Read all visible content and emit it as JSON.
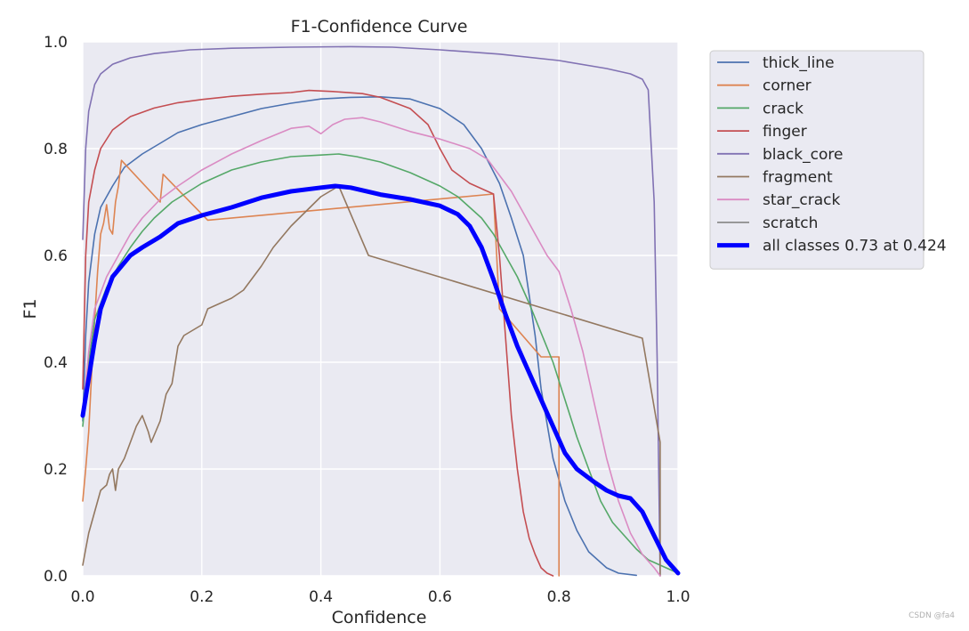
{
  "watermark": "CSDN @fa4",
  "chart_data": {
    "type": "line",
    "title": "F1-Confidence Curve",
    "xlabel": "Confidence",
    "ylabel": "F1",
    "xlim": [
      0,
      1
    ],
    "ylim": [
      0,
      1
    ],
    "xticks": [
      "0.0",
      "0.2",
      "0.4",
      "0.6",
      "0.8",
      "1.0"
    ],
    "yticks": [
      "0.0",
      "0.2",
      "0.4",
      "0.6",
      "0.8",
      "1.0"
    ],
    "grid": true,
    "legend_position": "outside-right",
    "colors": {
      "plot_background": "#eaeaf2",
      "grid": "#ffffff"
    },
    "series": [
      {
        "name": "thick_line",
        "color": "#4c72b0",
        "points": [
          [
            0,
            0.29
          ],
          [
            0.005,
            0.45
          ],
          [
            0.01,
            0.55
          ],
          [
            0.02,
            0.64
          ],
          [
            0.03,
            0.69
          ],
          [
            0.05,
            0.73
          ],
          [
            0.07,
            0.765
          ],
          [
            0.1,
            0.79
          ],
          [
            0.13,
            0.81
          ],
          [
            0.16,
            0.83
          ],
          [
            0.2,
            0.845
          ],
          [
            0.25,
            0.86
          ],
          [
            0.3,
            0.875
          ],
          [
            0.35,
            0.885
          ],
          [
            0.4,
            0.893
          ],
          [
            0.45,
            0.896
          ],
          [
            0.5,
            0.897
          ],
          [
            0.55,
            0.893
          ],
          [
            0.6,
            0.875
          ],
          [
            0.64,
            0.845
          ],
          [
            0.67,
            0.8
          ],
          [
            0.7,
            0.735
          ],
          [
            0.72,
            0.67
          ],
          [
            0.74,
            0.6
          ],
          [
            0.76,
            0.45
          ],
          [
            0.77,
            0.35
          ],
          [
            0.79,
            0.22
          ],
          [
            0.81,
            0.14
          ],
          [
            0.83,
            0.085
          ],
          [
            0.85,
            0.045
          ],
          [
            0.88,
            0.015
          ],
          [
            0.9,
            0.005
          ],
          [
            0.93,
            0.001
          ]
        ]
      },
      {
        "name": "corner",
        "color": "#dd8452",
        "points": [
          [
            0,
            0.14
          ],
          [
            0.005,
            0.2
          ],
          [
            0.01,
            0.27
          ],
          [
            0.015,
            0.38
          ],
          [
            0.02,
            0.48
          ],
          [
            0.025,
            0.57
          ],
          [
            0.03,
            0.64
          ],
          [
            0.035,
            0.66
          ],
          [
            0.04,
            0.695
          ],
          [
            0.045,
            0.65
          ],
          [
            0.05,
            0.64
          ],
          [
            0.055,
            0.7
          ],
          [
            0.06,
            0.73
          ],
          [
            0.065,
            0.778
          ],
          [
            0.13,
            0.7
          ],
          [
            0.135,
            0.752
          ],
          [
            0.21,
            0.666
          ],
          [
            0.69,
            0.715
          ],
          [
            0.7,
            0.5
          ],
          [
            0.77,
            0.41
          ],
          [
            0.8,
            0.41
          ],
          [
            0.8,
            0.0
          ]
        ]
      },
      {
        "name": "crack",
        "color": "#55a868",
        "points": [
          [
            0,
            0.28
          ],
          [
            0.01,
            0.4
          ],
          [
            0.02,
            0.48
          ],
          [
            0.04,
            0.54
          ],
          [
            0.06,
            0.58
          ],
          [
            0.08,
            0.615
          ],
          [
            0.1,
            0.645
          ],
          [
            0.12,
            0.67
          ],
          [
            0.15,
            0.7
          ],
          [
            0.2,
            0.735
          ],
          [
            0.25,
            0.76
          ],
          [
            0.3,
            0.775
          ],
          [
            0.35,
            0.785
          ],
          [
            0.4,
            0.788
          ],
          [
            0.43,
            0.79
          ],
          [
            0.46,
            0.785
          ],
          [
            0.5,
            0.775
          ],
          [
            0.55,
            0.755
          ],
          [
            0.6,
            0.73
          ],
          [
            0.63,
            0.71
          ],
          [
            0.65,
            0.69
          ],
          [
            0.67,
            0.67
          ],
          [
            0.69,
            0.64
          ],
          [
            0.71,
            0.6
          ],
          [
            0.73,
            0.56
          ],
          [
            0.75,
            0.51
          ],
          [
            0.77,
            0.455
          ],
          [
            0.79,
            0.4
          ],
          [
            0.81,
            0.33
          ],
          [
            0.83,
            0.26
          ],
          [
            0.85,
            0.2
          ],
          [
            0.87,
            0.14
          ],
          [
            0.89,
            0.1
          ],
          [
            0.91,
            0.075
          ],
          [
            0.93,
            0.05
          ],
          [
            0.95,
            0.03
          ],
          [
            0.97,
            0.02
          ],
          [
            0.99,
            0.01
          ],
          [
            1.0,
            0.005
          ]
        ]
      },
      {
        "name": "finger",
        "color": "#c44e52",
        "points": [
          [
            0,
            0.35
          ],
          [
            0.005,
            0.6
          ],
          [
            0.01,
            0.7
          ],
          [
            0.02,
            0.76
          ],
          [
            0.03,
            0.8
          ],
          [
            0.05,
            0.835
          ],
          [
            0.08,
            0.86
          ],
          [
            0.12,
            0.876
          ],
          [
            0.16,
            0.886
          ],
          [
            0.2,
            0.892
          ],
          [
            0.25,
            0.898
          ],
          [
            0.3,
            0.902
          ],
          [
            0.35,
            0.905
          ],
          [
            0.38,
            0.909
          ],
          [
            0.42,
            0.907
          ],
          [
            0.47,
            0.903
          ],
          [
            0.5,
            0.896
          ],
          [
            0.55,
            0.875
          ],
          [
            0.58,
            0.845
          ],
          [
            0.6,
            0.8
          ],
          [
            0.62,
            0.76
          ],
          [
            0.65,
            0.735
          ],
          [
            0.68,
            0.72
          ],
          [
            0.69,
            0.715
          ],
          [
            0.7,
            0.6
          ],
          [
            0.71,
            0.45
          ],
          [
            0.72,
            0.3
          ],
          [
            0.73,
            0.2
          ],
          [
            0.74,
            0.12
          ],
          [
            0.75,
            0.07
          ],
          [
            0.76,
            0.04
          ],
          [
            0.77,
            0.015
          ],
          [
            0.78,
            0.005
          ],
          [
            0.79,
            0.0
          ]
        ]
      },
      {
        "name": "black_core",
        "color": "#8172b3",
        "points": [
          [
            0,
            0.63
          ],
          [
            0.005,
            0.8
          ],
          [
            0.01,
            0.87
          ],
          [
            0.02,
            0.92
          ],
          [
            0.03,
            0.94
          ],
          [
            0.05,
            0.958
          ],
          [
            0.08,
            0.97
          ],
          [
            0.12,
            0.978
          ],
          [
            0.18,
            0.985
          ],
          [
            0.25,
            0.988
          ],
          [
            0.35,
            0.99
          ],
          [
            0.45,
            0.991
          ],
          [
            0.52,
            0.99
          ],
          [
            0.6,
            0.985
          ],
          [
            0.7,
            0.977
          ],
          [
            0.8,
            0.965
          ],
          [
            0.88,
            0.95
          ],
          [
            0.92,
            0.94
          ],
          [
            0.94,
            0.93
          ],
          [
            0.95,
            0.91
          ],
          [
            0.96,
            0.7
          ],
          [
            0.965,
            0.4
          ],
          [
            0.97,
            0.0
          ]
        ]
      },
      {
        "name": "fragment",
        "color": "#937860",
        "points": [
          [
            0,
            0.02
          ],
          [
            0.005,
            0.05
          ],
          [
            0.01,
            0.08
          ],
          [
            0.02,
            0.12
          ],
          [
            0.03,
            0.16
          ],
          [
            0.04,
            0.17
          ],
          [
            0.045,
            0.19
          ],
          [
            0.05,
            0.2
          ],
          [
            0.055,
            0.16
          ],
          [
            0.06,
            0.2
          ],
          [
            0.07,
            0.22
          ],
          [
            0.08,
            0.25
          ],
          [
            0.09,
            0.28
          ],
          [
            0.1,
            0.3
          ],
          [
            0.11,
            0.27
          ],
          [
            0.115,
            0.25
          ],
          [
            0.13,
            0.29
          ],
          [
            0.14,
            0.34
          ],
          [
            0.15,
            0.36
          ],
          [
            0.16,
            0.43
          ],
          [
            0.17,
            0.45
          ],
          [
            0.2,
            0.47
          ],
          [
            0.21,
            0.5
          ],
          [
            0.25,
            0.52
          ],
          [
            0.27,
            0.535
          ],
          [
            0.3,
            0.58
          ],
          [
            0.32,
            0.615
          ],
          [
            0.35,
            0.655
          ],
          [
            0.4,
            0.71
          ],
          [
            0.43,
            0.73
          ],
          [
            0.48,
            0.6
          ],
          [
            0.94,
            0.445
          ],
          [
            0.97,
            0.25
          ],
          [
            0.97,
            0.0
          ]
        ]
      },
      {
        "name": "star_crack",
        "color": "#da8bc3",
        "points": [
          [
            0,
            0.3
          ],
          [
            0.01,
            0.42
          ],
          [
            0.02,
            0.5
          ],
          [
            0.04,
            0.56
          ],
          [
            0.06,
            0.6
          ],
          [
            0.08,
            0.64
          ],
          [
            0.1,
            0.67
          ],
          [
            0.13,
            0.705
          ],
          [
            0.16,
            0.73
          ],
          [
            0.2,
            0.76
          ],
          [
            0.25,
            0.79
          ],
          [
            0.3,
            0.815
          ],
          [
            0.35,
            0.838
          ],
          [
            0.38,
            0.842
          ],
          [
            0.4,
            0.828
          ],
          [
            0.42,
            0.845
          ],
          [
            0.44,
            0.855
          ],
          [
            0.47,
            0.858
          ],
          [
            0.5,
            0.85
          ],
          [
            0.55,
            0.832
          ],
          [
            0.6,
            0.818
          ],
          [
            0.65,
            0.8
          ],
          [
            0.68,
            0.78
          ],
          [
            0.7,
            0.75
          ],
          [
            0.72,
            0.72
          ],
          [
            0.74,
            0.68
          ],
          [
            0.76,
            0.64
          ],
          [
            0.78,
            0.6
          ],
          [
            0.8,
            0.57
          ],
          [
            0.82,
            0.5
          ],
          [
            0.84,
            0.42
          ],
          [
            0.86,
            0.32
          ],
          [
            0.88,
            0.22
          ],
          [
            0.9,
            0.14
          ],
          [
            0.92,
            0.08
          ],
          [
            0.94,
            0.04
          ],
          [
            0.96,
            0.015
          ],
          [
            0.97,
            0.0
          ]
        ]
      },
      {
        "name": "scratch",
        "color": "#8c8c8c",
        "points": []
      },
      {
        "name": "all classes 0.73 at 0.424",
        "color": "#0000ff",
        "bold": true,
        "points": [
          [
            0,
            0.3
          ],
          [
            0.01,
            0.37
          ],
          [
            0.02,
            0.44
          ],
          [
            0.03,
            0.5
          ],
          [
            0.05,
            0.56
          ],
          [
            0.08,
            0.6
          ],
          [
            0.1,
            0.615
          ],
          [
            0.13,
            0.635
          ],
          [
            0.16,
            0.66
          ],
          [
            0.2,
            0.675
          ],
          [
            0.25,
            0.69
          ],
          [
            0.3,
            0.708
          ],
          [
            0.35,
            0.72
          ],
          [
            0.4,
            0.727
          ],
          [
            0.424,
            0.73
          ],
          [
            0.45,
            0.727
          ],
          [
            0.5,
            0.714
          ],
          [
            0.55,
            0.705
          ],
          [
            0.6,
            0.693
          ],
          [
            0.63,
            0.677
          ],
          [
            0.65,
            0.655
          ],
          [
            0.67,
            0.615
          ],
          [
            0.69,
            0.555
          ],
          [
            0.71,
            0.49
          ],
          [
            0.73,
            0.43
          ],
          [
            0.75,
            0.38
          ],
          [
            0.77,
            0.33
          ],
          [
            0.79,
            0.28
          ],
          [
            0.81,
            0.23
          ],
          [
            0.83,
            0.2
          ],
          [
            0.86,
            0.175
          ],
          [
            0.88,
            0.16
          ],
          [
            0.9,
            0.15
          ],
          [
            0.92,
            0.145
          ],
          [
            0.94,
            0.12
          ],
          [
            0.96,
            0.075
          ],
          [
            0.98,
            0.03
          ],
          [
            1.0,
            0.005
          ]
        ]
      }
    ]
  }
}
